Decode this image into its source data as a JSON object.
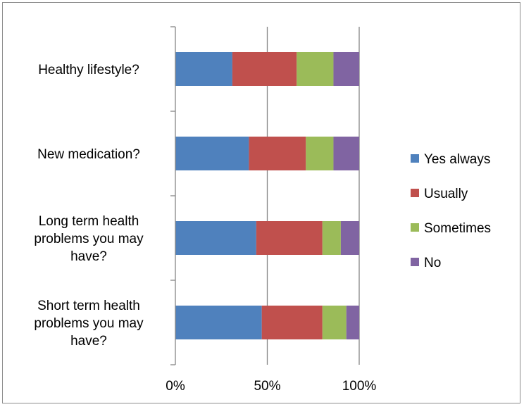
{
  "chart_data": {
    "type": "bar",
    "orientation": "horizontal",
    "stacked": "percent",
    "categories": [
      [
        "Short term health",
        "problems you may",
        "have?"
      ],
      [
        "Long term health",
        "problems you may",
        "have?"
      ],
      [
        "New medication?"
      ],
      [
        "Healthy lifestyle?"
      ]
    ],
    "series": [
      {
        "name": "Yes always",
        "color": "#4F81BD",
        "values": [
          47,
          44,
          40,
          31
        ]
      },
      {
        "name": "Usually",
        "color": "#C0504D",
        "values": [
          33,
          36,
          31,
          35
        ]
      },
      {
        "name": "Sometimes",
        "color": "#9BBB59",
        "values": [
          13,
          10,
          15,
          20
        ]
      },
      {
        "name": "No",
        "color": "#8064A2",
        "values": [
          7,
          10,
          14,
          14
        ]
      }
    ],
    "x_ticks": [
      "0%",
      "50%",
      "100%"
    ],
    "xlim": [
      0,
      100
    ],
    "grid": "vertical major gridlines",
    "legend_position": "right",
    "title": "",
    "xlabel": "",
    "ylabel": ""
  }
}
